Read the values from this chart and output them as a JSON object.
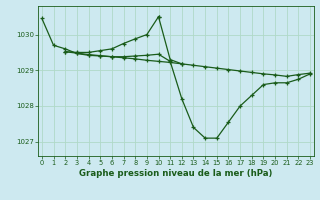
{
  "background_color": "#cde9f0",
  "grid_color": "#b0d9c8",
  "line_color": "#1a5c1a",
  "marker_color": "#1a5c1a",
  "xlabel": "Graphe pression niveau de la mer (hPa)",
  "xlabel_color": "#1a5c1a",
  "tick_color": "#1a5c1a",
  "ylim": [
    1026.6,
    1030.8
  ],
  "xlim": [
    -0.3,
    23.3
  ],
  "yticks": [
    1027,
    1028,
    1029,
    1030
  ],
  "xticks": [
    0,
    1,
    2,
    3,
    4,
    5,
    6,
    7,
    8,
    9,
    10,
    11,
    12,
    13,
    14,
    15,
    16,
    17,
    18,
    19,
    20,
    21,
    22,
    23
  ],
  "series": [
    {
      "x": [
        0,
        1,
        2,
        3,
        4,
        5,
        6,
        7,
        8,
        9,
        10,
        11,
        12,
        13,
        14,
        15,
        16,
        17,
        18,
        19,
        20,
        21,
        22,
        23
      ],
      "y": [
        1030.45,
        1029.7,
        1029.6,
        1029.47,
        1029.42,
        1029.4,
        1029.38,
        1029.38,
        1029.4,
        1029.42,
        1029.45,
        1029.25,
        1028.2,
        1027.4,
        1027.1,
        1027.1,
        1027.55,
        1028.0,
        1028.3,
        1028.6,
        1028.65,
        1028.65,
        1028.75,
        1028.9
      ]
    },
    {
      "x": [
        2,
        3,
        4,
        5,
        6,
        7,
        8,
        9,
        10,
        11,
        12,
        13,
        14,
        15,
        16,
        17,
        18,
        19,
        20,
        21,
        22,
        23
      ],
      "y": [
        1029.52,
        1029.48,
        1029.44,
        1029.41,
        1029.38,
        1029.35,
        1029.32,
        1029.28,
        1029.25,
        1029.22,
        1029.18,
        1029.14,
        1029.1,
        1029.06,
        1029.02,
        1028.98,
        1028.94,
        1028.9,
        1028.87,
        1028.83,
        1028.88,
        1028.92
      ]
    },
    {
      "x": [
        2,
        3,
        4,
        5,
        6,
        7,
        8,
        9,
        10
      ],
      "y": [
        1029.52,
        1029.5,
        1029.5,
        1029.55,
        1029.6,
        1029.75,
        1029.88,
        1030.0,
        1030.5
      ]
    },
    {
      "x": [
        10,
        11,
        12
      ],
      "y": [
        1030.5,
        1029.3,
        1029.18
      ]
    }
  ]
}
